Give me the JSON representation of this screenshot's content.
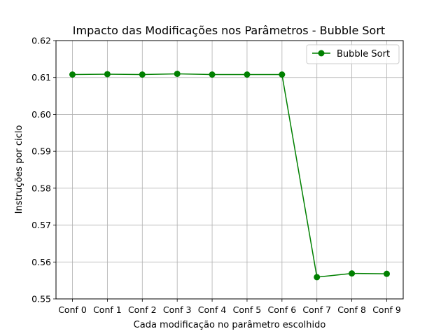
{
  "chart_data": {
    "type": "line",
    "title": "Impacto das Modificações nos Parâmetros - Bubble Sort",
    "xlabel": "Cada modificação no parâmetro escolhido",
    "ylabel": "Instruções por ciclo",
    "categories": [
      "Conf 0",
      "Conf 1",
      "Conf 2",
      "Conf 3",
      "Conf 4",
      "Conf 5",
      "Conf 6",
      "Conf 7",
      "Conf 8",
      "Conf 9"
    ],
    "series": [
      {
        "name": "Bubble Sort",
        "color": "#008000",
        "marker": "circle",
        "values": [
          0.6108,
          0.6109,
          0.6108,
          0.611,
          0.6108,
          0.6108,
          0.6108,
          0.5559,
          0.5569,
          0.5568
        ]
      }
    ],
    "ylim": [
      0.55,
      0.62
    ],
    "yticks": [
      "0.55",
      "0.56",
      "0.57",
      "0.58",
      "0.59",
      "0.60",
      "0.61",
      "0.62"
    ],
    "grid": true,
    "legend_position": "upper-right"
  }
}
